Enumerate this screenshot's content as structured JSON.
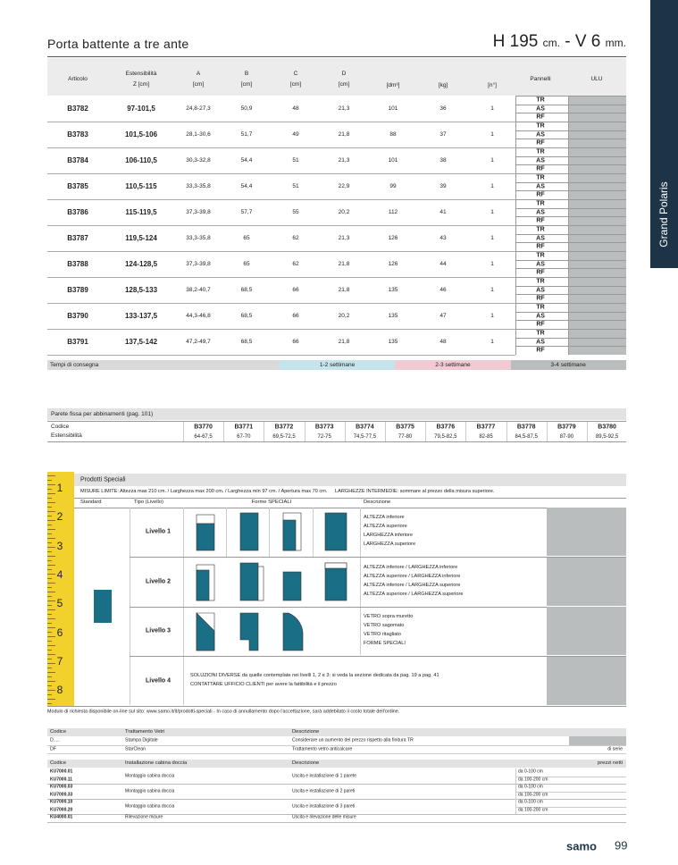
{
  "header": {
    "title": "Porta battente a tre ante",
    "spec": [
      "H 195",
      "cm.",
      "-",
      "V 6",
      "mm."
    ]
  },
  "side_tab": "Grand Polaris",
  "main_table": {
    "headers": [
      [
        "Articolo"
      ],
      [
        "Estensibilità",
        "Z [cm]"
      ],
      [
        "A",
        "[cm]"
      ],
      [
        "B",
        "[cm]"
      ],
      [
        "C",
        "[cm]"
      ],
      [
        "D",
        "[cm]"
      ],
      [
        "[dm³]"
      ],
      [
        "[kg]"
      ],
      [
        "[n°]"
      ],
      [
        "Pannelli"
      ],
      [
        "ULU"
      ]
    ],
    "rows": [
      [
        "B3782",
        "97-101,5",
        "24,8-27,3",
        "50,9",
        "48",
        "21,3",
        "101",
        "36",
        "1"
      ],
      [
        "B3783",
        "101,5-106",
        "28,1-30,6",
        "51,7",
        "49",
        "21,8",
        "88",
        "37",
        "1"
      ],
      [
        "B3784",
        "106-110,5",
        "30,3-32,8",
        "54,4",
        "51",
        "21,3",
        "101",
        "38",
        "1"
      ],
      [
        "B3785",
        "110,5-115",
        "33,3-35,8",
        "54,4",
        "51",
        "22,9",
        "99",
        "39",
        "1"
      ],
      [
        "B3786",
        "115-119,5",
        "37,3-39,8",
        "57,7",
        "55",
        "20,2",
        "112",
        "41",
        "1"
      ],
      [
        "B3787",
        "119,5-124",
        "33,3-35,8",
        "65",
        "62",
        "21,3",
        "126",
        "43",
        "1"
      ],
      [
        "B3788",
        "124-128,5",
        "37,3-39,8",
        "65",
        "62",
        "21,8",
        "126",
        "44",
        "1"
      ],
      [
        "B3789",
        "128,5-133",
        "38,2-40,7",
        "68,5",
        "66",
        "21,8",
        "135",
        "46",
        "1"
      ],
      [
        "B3790",
        "133-137,5",
        "44,3-46,8",
        "68,5",
        "66",
        "20,2",
        "135",
        "47",
        "1"
      ],
      [
        "B3791",
        "137,5-142",
        "47,2-49,7",
        "68,5",
        "66",
        "21,8",
        "135",
        "48",
        "1"
      ]
    ],
    "panels": [
      "TR",
      "AS",
      "RF"
    ]
  },
  "delivery": {
    "label": "Tempi di consegna",
    "options": [
      "1-2 settimane",
      "2-3 settimane",
      "3-4 settimane"
    ]
  },
  "fixed_panel": {
    "title": "Parete fissa per abbinamenti (pag. 101)",
    "labels": [
      "Codice",
      "Estensibilità"
    ],
    "codes": [
      "B3770",
      "B3771",
      "B3772",
      "B3773",
      "B3774",
      "B3775",
      "B3776",
      "B3777",
      "B3778",
      "B3779",
      "B3780"
    ],
    "ranges": [
      "64-67,5",
      "67-70",
      "69,5-72,5",
      "72-75",
      "74,5-77,5",
      "77-80",
      "79,5-82,5",
      "82-85",
      "84,5-87,5",
      "87-90",
      "89,5-92,5"
    ]
  },
  "special": {
    "title": "Prodotti Speciali",
    "limits": "MISURE LIMITE: Altezza max 210 cm. / Larghezza max 200 cm. / Larghezza min 97 cm. / Apertura max 70 cm.",
    "intermediate": "LARGHEZZE INTERMEDIE: sommare al prezzo della misura superiore.",
    "headers": [
      "Standard",
      "Tipo (Livello)",
      "Forme SPECIALI",
      "Descrizione"
    ],
    "ruler": [
      1,
      2,
      3,
      4,
      5,
      6,
      7,
      8
    ],
    "levels": [
      {
        "label": "Livello 1",
        "description": [
          "ALTEZZA inferiore",
          "ALTEZZA superiore",
          "LARGHEZZA inferiore",
          "LARGHEZZA superiore"
        ]
      },
      {
        "label": "Livello 2",
        "description": [
          "ALTEZZA inferiore / LARGHEZZA inferiore",
          "ALTEZZA superiore / LARGHEZZA inferiore",
          "ALTEZZA inferiore / LARGHEZZA superiore",
          "ALTEZZA superiore / LARGHEZZA superiore"
        ]
      },
      {
        "label": "Livello 3",
        "description": [
          "VETRO sopra muretto",
          "VETRO sagomato",
          "VETRO ritagliato",
          "FORME SPECIALI"
        ]
      },
      {
        "label": "Livello 4",
        "description": [
          "SOLUZIONI DIVERSE da quelle contemplate nei livelli 1, 2 e 3: si veda la sezione dedicata da pag. 19 a pag. 41",
          "CONTATTARE UFFICIO CLIENTI per avere la fattibilità e il prezzo"
        ]
      }
    ]
  },
  "note": "Modulo di richiesta disponibile on-line sul sito: www.samo.it/it/prodotti-speciali - In caso di annullamento dopo l'accettazione, sarà addebitato il costo totale dell'ordine.",
  "treatments": {
    "headers": [
      "Codice",
      "Trattamento Vetri",
      "Descrizione"
    ],
    "rows": [
      [
        "D.....",
        "Stampa Digitale",
        "Considerare un aumento del prezzo rispetto alla finitura TR"
      ],
      [
        "DF",
        "StarClean",
        "Trattamento vetro anticalcare",
        "di serie"
      ]
    ]
  },
  "installation": {
    "headers": [
      "Codice",
      "Installazione cabina doccia",
      "Descrizione",
      "prezzi netti"
    ],
    "groups": [
      {
        "codes": [
          "KU7000.01",
          "KU7000.11"
        ],
        "type": "Montaggio cabina doccia",
        "description": "Uscita e installazione di 1 parete",
        "ranges": [
          "da 0-100 cm",
          "da 100-200 cm"
        ]
      },
      {
        "codes": [
          "KU7000.03",
          "KU7000.33"
        ],
        "type": "Montaggio cabina doccia",
        "description": "Uscita e installazione di 2 pareti",
        "ranges": [
          "da 0-100 cm",
          "da 100-200 cm"
        ]
      },
      {
        "codes": [
          "KU7000.10",
          "KU7000.20"
        ],
        "type": "Montaggio cabina doccia",
        "description": "Uscita e installazione di 3 pareti",
        "ranges": [
          "da 0-100 cm",
          "da 100-200 cm"
        ]
      },
      {
        "codes": [
          "KU4000.01"
        ],
        "type": "Rilevazione misure",
        "description": "Uscita e rilevazione delle misure",
        "ranges": []
      }
    ]
  },
  "footer": {
    "brand": "samo",
    "page": "99"
  }
}
